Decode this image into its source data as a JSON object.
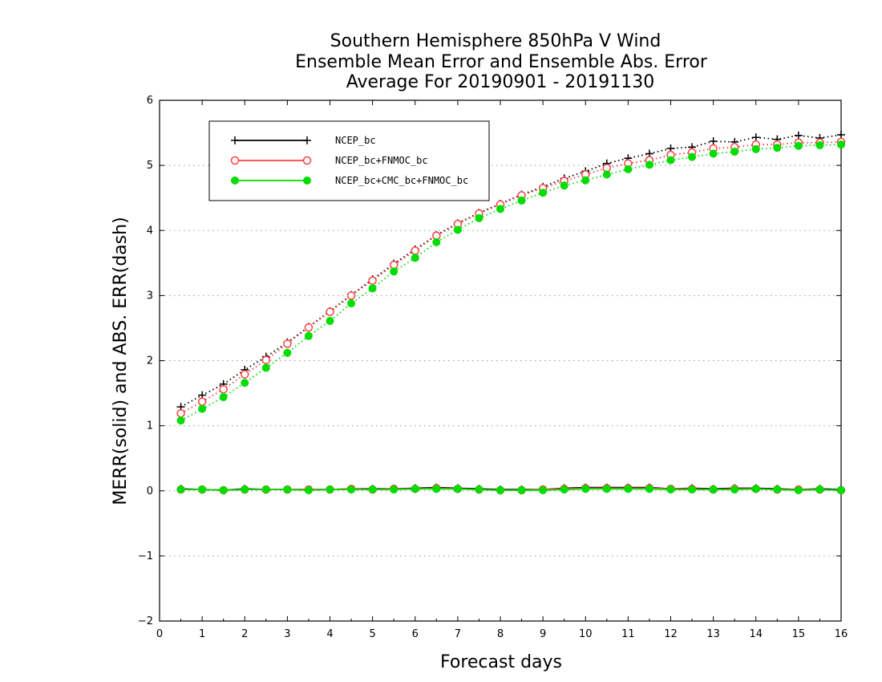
{
  "chart_data": {
    "type": "line",
    "title": [
      "Southern Hemisphere 850hPa V Wind",
      "Ensemble Mean Error and Ensemble Abs. Error",
      "Average For 20190901 - 20191130"
    ],
    "xlabel": "Forecast days",
    "ylabel": "MERR(solid) and ABS. ERR(dash)",
    "xlim": [
      0,
      16
    ],
    "ylim": [
      -2,
      6
    ],
    "xticks": [
      "0",
      "1",
      "2",
      "3",
      "4",
      "5",
      "6",
      "7",
      "8",
      "9",
      "10",
      "11",
      "12",
      "13",
      "14",
      "15",
      "16"
    ],
    "yticks": [
      "-2",
      "-1",
      "0",
      "1",
      "2",
      "3",
      "4",
      "5",
      "6"
    ],
    "grid": "horizontal dotted",
    "legend_position": "top-left",
    "x": [
      0.5,
      1,
      1.5,
      2,
      2.5,
      3,
      3.5,
      4,
      4.5,
      5,
      5.5,
      6,
      6.5,
      7,
      7.5,
      8,
      8.5,
      9,
      9.5,
      10,
      10.5,
      11,
      11.5,
      12,
      12.5,
      13,
      13.5,
      14,
      14.5,
      15,
      15.5,
      16
    ],
    "series": [
      {
        "name": "NCEP_bc",
        "color": "#000000",
        "marker": "plus",
        "abs_err": [
          1.29,
          1.47,
          1.64,
          1.86,
          2.06,
          2.28,
          2.52,
          2.76,
          3.01,
          3.25,
          3.49,
          3.71,
          3.93,
          4.11,
          4.27,
          4.41,
          4.55,
          4.67,
          4.8,
          4.91,
          5.03,
          5.11,
          5.18,
          5.26,
          5.28,
          5.37,
          5.36,
          5.43,
          5.4,
          5.46,
          5.42,
          5.47
        ],
        "mean_err": [
          0.03,
          0.02,
          0.01,
          0.03,
          0.02,
          0.02,
          0.02,
          0.02,
          0.03,
          0.03,
          0.03,
          0.04,
          0.05,
          0.04,
          0.03,
          0.02,
          0.02,
          0.02,
          0.04,
          0.05,
          0.05,
          0.05,
          0.05,
          0.03,
          0.04,
          0.03,
          0.04,
          0.04,
          0.03,
          0.02,
          0.03,
          0.02
        ]
      },
      {
        "name": "NCEP_bc+FNMOC_bc",
        "color": "#ff4040",
        "marker": "open-circle",
        "abs_err": [
          1.19,
          1.37,
          1.56,
          1.79,
          2.01,
          2.26,
          2.51,
          2.75,
          3.0,
          3.23,
          3.47,
          3.69,
          3.92,
          4.1,
          4.26,
          4.4,
          4.54,
          4.65,
          4.76,
          4.86,
          4.96,
          5.03,
          5.08,
          5.16,
          5.2,
          5.26,
          5.28,
          5.32,
          5.32,
          5.35,
          5.35,
          5.36
        ],
        "mean_err": [
          0.02,
          0.02,
          0.01,
          0.02,
          0.02,
          0.02,
          0.02,
          0.02,
          0.03,
          0.02,
          0.03,
          0.03,
          0.04,
          0.03,
          0.02,
          0.01,
          0.01,
          0.02,
          0.03,
          0.04,
          0.04,
          0.04,
          0.04,
          0.03,
          0.03,
          0.02,
          0.03,
          0.03,
          0.02,
          0.02,
          0.02,
          0.01
        ]
      },
      {
        "name": "NCEP_bc+CMC_bc+FNMOC_bc",
        "color": "#00dd00",
        "marker": "filled-circle",
        "abs_err": [
          1.08,
          1.26,
          1.44,
          1.66,
          1.89,
          2.12,
          2.38,
          2.61,
          2.88,
          3.11,
          3.37,
          3.58,
          3.82,
          4.01,
          4.19,
          4.33,
          4.46,
          4.58,
          4.69,
          4.77,
          4.86,
          4.94,
          5.01,
          5.08,
          5.13,
          5.18,
          5.21,
          5.25,
          5.27,
          5.3,
          5.31,
          5.32
        ],
        "mean_err": [
          0.02,
          0.02,
          0.01,
          0.02,
          0.02,
          0.02,
          0.01,
          0.02,
          0.02,
          0.02,
          0.02,
          0.03,
          0.03,
          0.03,
          0.02,
          0.01,
          0.01,
          0.01,
          0.02,
          0.03,
          0.03,
          0.03,
          0.03,
          0.02,
          0.02,
          0.02,
          0.02,
          0.03,
          0.02,
          0.01,
          0.02,
          0.01
        ]
      }
    ]
  }
}
